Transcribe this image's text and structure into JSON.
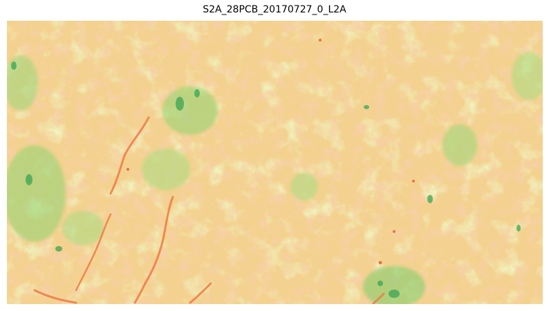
{
  "figure": {
    "title": "S2A_28PCB_20170727_0_L2A"
  },
  "image": {
    "kind": "vegetation-index raster",
    "colormap": "RdYlGn",
    "colors": {
      "red": "#e8643a",
      "orange": "#f6a868",
      "peach": "#f9c98a",
      "yellow": "#f4ee9c",
      "light_green": "#c8e88c",
      "green": "#7ccd6a",
      "dark_green": "#2f9e44"
    }
  }
}
